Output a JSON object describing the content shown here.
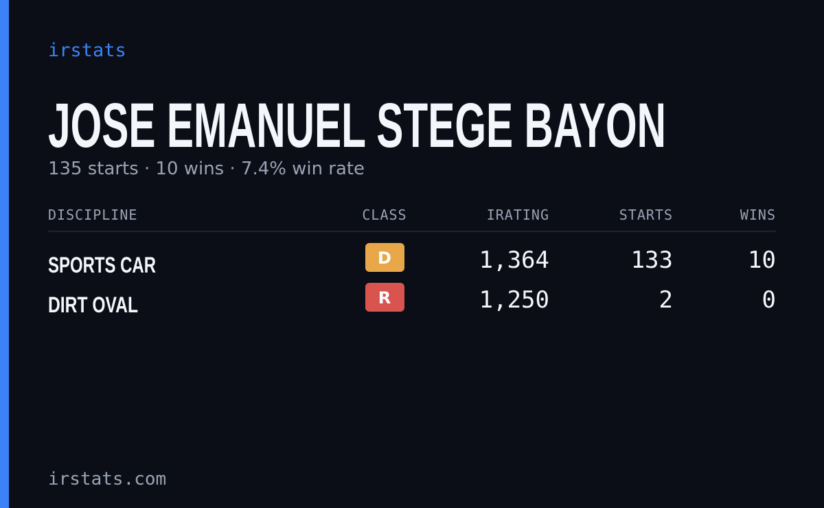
{
  "brand": "irstats",
  "title": "JOSE EMANUEL STEGE BAYON",
  "subtitle": "135 starts · 10 wins · 7.4% win rate",
  "table": {
    "headers": [
      "DISCIPLINE",
      "CLASS",
      "IRATING",
      "STARTS",
      "WINS"
    ],
    "rows": [
      [
        "SPORTS CAR",
        "D",
        "1,364",
        "133",
        "10"
      ],
      [
        "DIRT OVAL",
        "R",
        "1,250",
        "2",
        "0"
      ]
    ]
  },
  "footer": "irstats.com"
}
